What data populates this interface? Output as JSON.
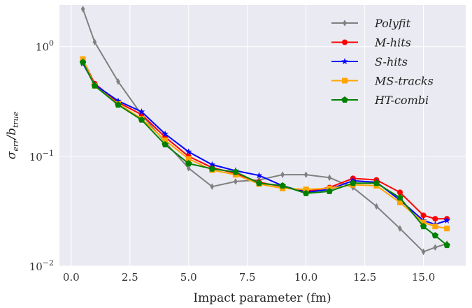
{
  "chart_data": {
    "type": "line",
    "xlabel": "Impact parameter (fm)",
    "ylabel": "σ_err / b_true",
    "ylabel_parts": {
      "sigma": "σ",
      "sigma_sub": "err",
      "slash": "/b",
      "b_sub": "true"
    },
    "xlim": [
      -0.5,
      16.8
    ],
    "ylim_log10": [
      -2,
      0.38
    ],
    "yscale": "log",
    "grid": true,
    "legend_position": "top-right",
    "xticks": [
      0.0,
      2.5,
      5.0,
      7.5,
      10.0,
      12.5,
      15.0
    ],
    "xtick_labels": [
      "0.0",
      "2.5",
      "5.0",
      "7.5",
      "10.0",
      "12.5",
      "15.0"
    ],
    "yticks": [
      {
        "value": 1,
        "base": "10",
        "exp": "0"
      },
      {
        "value": 0.1,
        "base": "10",
        "exp": "−1"
      },
      {
        "value": 0.01,
        "base": "10",
        "exp": "−2"
      }
    ],
    "x": [
      0.5,
      1,
      2,
      3,
      4,
      5,
      6,
      7,
      8,
      9,
      10,
      11,
      12,
      13,
      14,
      15,
      15.5,
      16
    ],
    "series": [
      {
        "name": "Polyfit",
        "color": "#808080",
        "marker": "diamond",
        "values": [
          2.2,
          1.1,
          0.48,
          0.24,
          0.135,
          0.078,
          0.053,
          0.059,
          0.061,
          0.068,
          0.068,
          0.064,
          0.052,
          0.035,
          0.022,
          0.0135,
          0.0148,
          0.016
        ]
      },
      {
        "name": "M-hits",
        "color": "#ff0000",
        "marker": "circle",
        "values": [
          0.76,
          0.46,
          0.31,
          0.24,
          0.15,
          0.1,
          0.079,
          0.07,
          0.058,
          0.053,
          0.048,
          0.052,
          0.063,
          0.061,
          0.047,
          0.029,
          0.027,
          0.027
        ]
      },
      {
        "name": "S-hits",
        "color": "#0000ff",
        "marker": "star",
        "values": [
          0.7,
          0.45,
          0.32,
          0.255,
          0.16,
          0.11,
          0.084,
          0.074,
          0.067,
          0.054,
          0.047,
          0.05,
          0.06,
          0.058,
          0.04,
          0.026,
          0.024,
          0.026
        ]
      },
      {
        "name": "MS-tracks",
        "color": "#ffa500",
        "marker": "square",
        "values": [
          0.77,
          0.44,
          0.3,
          0.22,
          0.14,
          0.095,
          0.075,
          0.068,
          0.056,
          0.051,
          0.05,
          0.051,
          0.055,
          0.054,
          0.038,
          0.025,
          0.023,
          0.022
        ]
      },
      {
        "name": "HT-combi",
        "color": "#008000",
        "marker": "pentagon",
        "values": [
          0.72,
          0.44,
          0.295,
          0.215,
          0.128,
          0.086,
          0.077,
          0.072,
          0.057,
          0.054,
          0.046,
          0.048,
          0.057,
          0.057,
          0.042,
          0.023,
          0.019,
          0.0155
        ]
      }
    ]
  }
}
